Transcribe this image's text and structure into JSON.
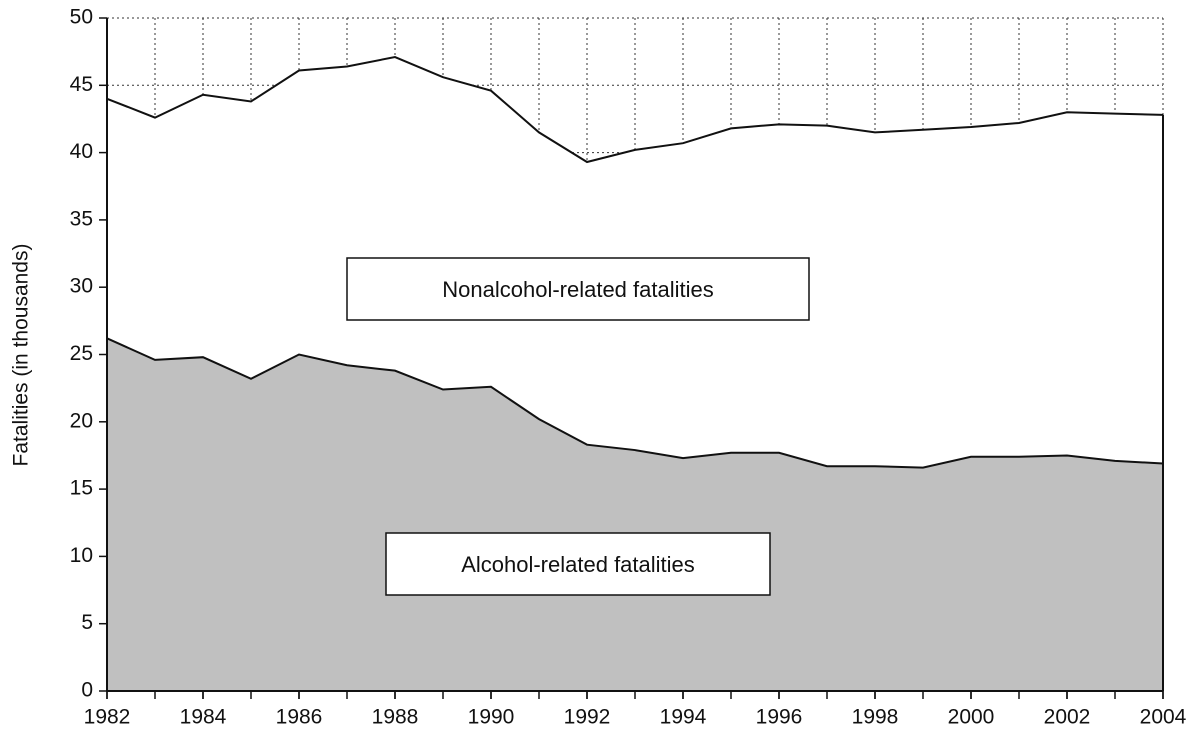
{
  "chart_data": {
    "type": "stacked-area",
    "y_label": "Fatalities (in thousands)",
    "x": [
      1982,
      1983,
      1984,
      1985,
      1986,
      1987,
      1988,
      1989,
      1990,
      1991,
      1992,
      1993,
      1994,
      1995,
      1996,
      1997,
      1998,
      1999,
      2000,
      2001,
      2002,
      2003,
      2004
    ],
    "series": [
      {
        "name": "Alcohol-related fatalities",
        "color": "#c0c0c0",
        "values": [
          26.2,
          24.6,
          24.8,
          23.2,
          25.0,
          24.2,
          23.8,
          22.4,
          22.6,
          20.2,
          18.3,
          17.9,
          17.3,
          17.7,
          17.7,
          16.7,
          16.7,
          16.6,
          17.4,
          17.4,
          17.5,
          17.1,
          16.9
        ]
      },
      {
        "name": "Nonalcohol-related fatalities",
        "color": "#ffffff",
        "values": [
          17.8,
          18.0,
          19.5,
          20.6,
          21.1,
          22.2,
          23.3,
          23.2,
          22.0,
          21.3,
          21.0,
          22.3,
          23.4,
          24.1,
          24.4,
          25.3,
          24.8,
          25.1,
          24.5,
          24.8,
          25.5,
          25.8,
          25.9
        ]
      }
    ],
    "xlim": [
      1982,
      2004
    ],
    "xticks": [
      1982,
      1984,
      1986,
      1988,
      1990,
      1992,
      1994,
      1996,
      1998,
      2000,
      2002,
      2004
    ],
    "ylim": [
      0,
      50
    ],
    "yticks": [
      0,
      5,
      10,
      15,
      20,
      25,
      30,
      35,
      40,
      45,
      50
    ],
    "grid": true
  }
}
